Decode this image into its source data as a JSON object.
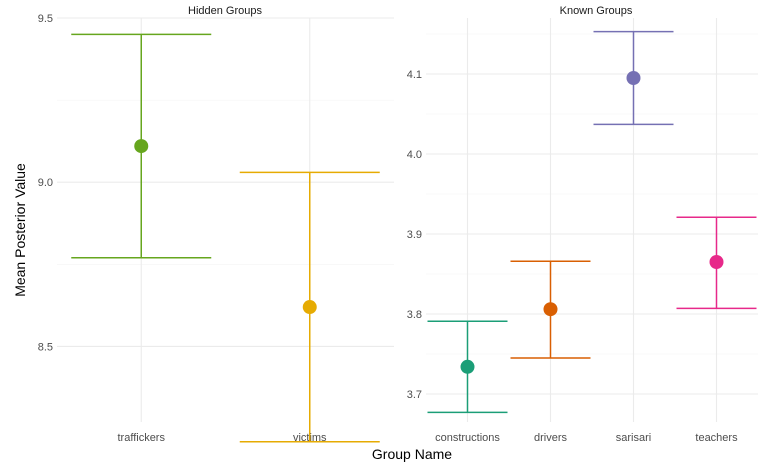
{
  "chart_data": {
    "type": "errorbar",
    "xlabel": "Group Name",
    "ylabel": "Mean Posterior Value",
    "grid": true,
    "legend": "none",
    "panels": [
      {
        "title": "Hidden Groups",
        "ylim": [
          8.27,
          9.5
        ],
        "yticks": [
          8.5,
          9.0,
          9.5
        ],
        "yticks_labels": [
          "8.5",
          "9.0",
          "9.5"
        ],
        "categories": [
          "traffickers",
          "victims"
        ],
        "points": [
          {
            "group": "traffickers",
            "mean": 9.11,
            "lower": 8.77,
            "upper": 9.45,
            "color": "#66a61e"
          },
          {
            "group": "victims",
            "mean": 8.62,
            "lower": 8.21,
            "upper": 9.03,
            "color": "#e6ab02"
          }
        ]
      },
      {
        "title": "Known Groups",
        "ylim": [
          3.665,
          4.17
        ],
        "yticks": [
          3.7,
          3.8,
          3.9,
          4.0,
          4.1
        ],
        "yticks_labels": [
          "3.7",
          "3.8",
          "3.9",
          "4.0",
          "4.1"
        ],
        "categories": [
          "constructions",
          "drivers",
          "sarisari",
          "teachers"
        ],
        "points": [
          {
            "group": "constructions",
            "mean": 3.734,
            "lower": 3.677,
            "upper": 3.791,
            "color": "#1b9e77"
          },
          {
            "group": "drivers",
            "mean": 3.806,
            "lower": 3.745,
            "upper": 3.866,
            "color": "#d95f02"
          },
          {
            "group": "sarisari",
            "mean": 4.095,
            "lower": 4.037,
            "upper": 4.153,
            "color": "#7570b3"
          },
          {
            "group": "teachers",
            "mean": 3.865,
            "lower": 3.807,
            "upper": 3.921,
            "color": "#e7298a"
          }
        ]
      }
    ]
  }
}
